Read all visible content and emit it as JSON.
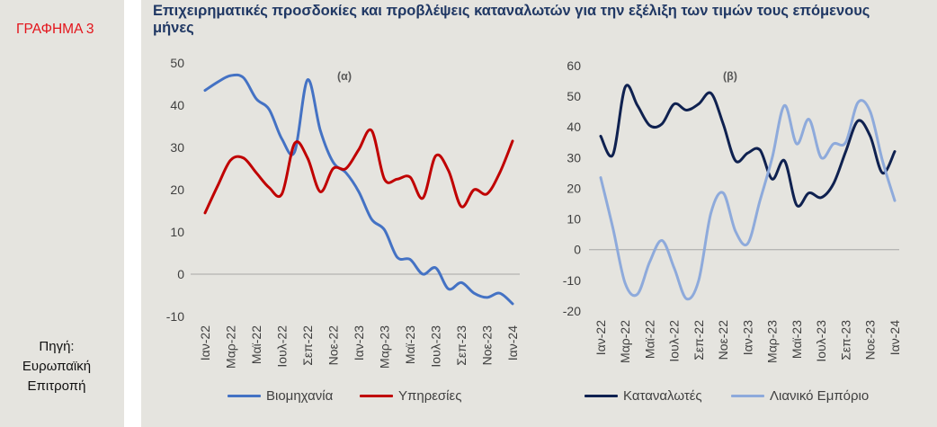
{
  "theme": {
    "panel_background": "#e5e4df",
    "title_color": "#203864",
    "figure_label_color": "#e3141b",
    "axis_text_color": "#404040",
    "zero_line_color": "#a6a6a6"
  },
  "sidebar": {
    "figure_label": "ΓΡΑΦΗΜΑ 3",
    "source_label": "Πηγή:",
    "source_name": "Ευρωπαϊκή Επιτροπή"
  },
  "figure": {
    "title_lines": [
      "Επιχειρηματικές προσδοκίες και προβλέψεις καταναλωτών για την εξέλιξη των τιμών τους επόμενους",
      "μήνες"
    ]
  },
  "chart_data": [
    {
      "type": "line",
      "label": "(α)",
      "x_tick_labels": [
        "Ιαν-22",
        "Μαρ-22",
        "Μαϊ-22",
        "Ιουλ-22",
        "Σεπ-22",
        "Νοε-22",
        "Ιαν-23",
        "Μαρ-23",
        "Μαϊ-23",
        "Ιουλ-23",
        "Σεπ-23",
        "Νοε-23",
        "Ιαν-24"
      ],
      "ylim": [
        -10,
        50
      ],
      "yticks": [
        50,
        40,
        30,
        20,
        10,
        0,
        -10
      ],
      "grid": false,
      "zero_line": true,
      "smooth": true,
      "legend": "bottom",
      "series": [
        {
          "name": "Βιομηχανία",
          "color": "#4472c4",
          "values": [
            43.5,
            45.5,
            47,
            46.5,
            41.5,
            39,
            32,
            29,
            46,
            34,
            26.5,
            24,
            19.5,
            13,
            10.5,
            4,
            3.5,
            0,
            1.5,
            -3.5,
            -2,
            -4.5,
            -5.5,
            -4.5,
            -7
          ]
        },
        {
          "name": "Υπηρεσίες",
          "color": "#c00000",
          "values": [
            14.5,
            21,
            27,
            27.5,
            24,
            20.5,
            19,
            31,
            27.5,
            19.5,
            25,
            25,
            29.5,
            34,
            22.5,
            22.5,
            23,
            18,
            28,
            24.5,
            16,
            20,
            19,
            24,
            31.5
          ]
        }
      ]
    },
    {
      "type": "line",
      "label": "(β)",
      "x_tick_labels": [
        "Ιαν-22",
        "Μαρ-22",
        "Μαϊ-22",
        "Ιουλ-22",
        "Σεπ-22",
        "Νοε-22",
        "Ιαν-23",
        "Μαρ-23",
        "Μαϊ-23",
        "Ιουλ-23",
        "Σεπ-23",
        "Νοε-23",
        "Ιαν-24"
      ],
      "ylim": [
        -20,
        60
      ],
      "yticks": [
        60,
        50,
        40,
        30,
        20,
        10,
        0,
        -10,
        -20
      ],
      "grid": false,
      "zero_line": true,
      "smooth": true,
      "legend": "bottom",
      "series": [
        {
          "name": "Καταναλωτές",
          "color": "#0f2150",
          "values": [
            37,
            31,
            53,
            47,
            40.5,
            41,
            47.5,
            45.5,
            47.5,
            51,
            41,
            29,
            31.5,
            32.5,
            23,
            29,
            14.5,
            18.5,
            17,
            21.5,
            32,
            42,
            37,
            25,
            32
          ]
        },
        {
          "name": "Λιανικό Εμπόριο",
          "color": "#8eaadb",
          "values": [
            23.5,
            7,
            -11,
            -14.5,
            -4,
            3,
            -6,
            -16,
            -10,
            12,
            18.5,
            6,
            2,
            16,
            30,
            47,
            34.5,
            42.5,
            30,
            34.5,
            35,
            48,
            45,
            29,
            16
          ]
        }
      ]
    }
  ]
}
